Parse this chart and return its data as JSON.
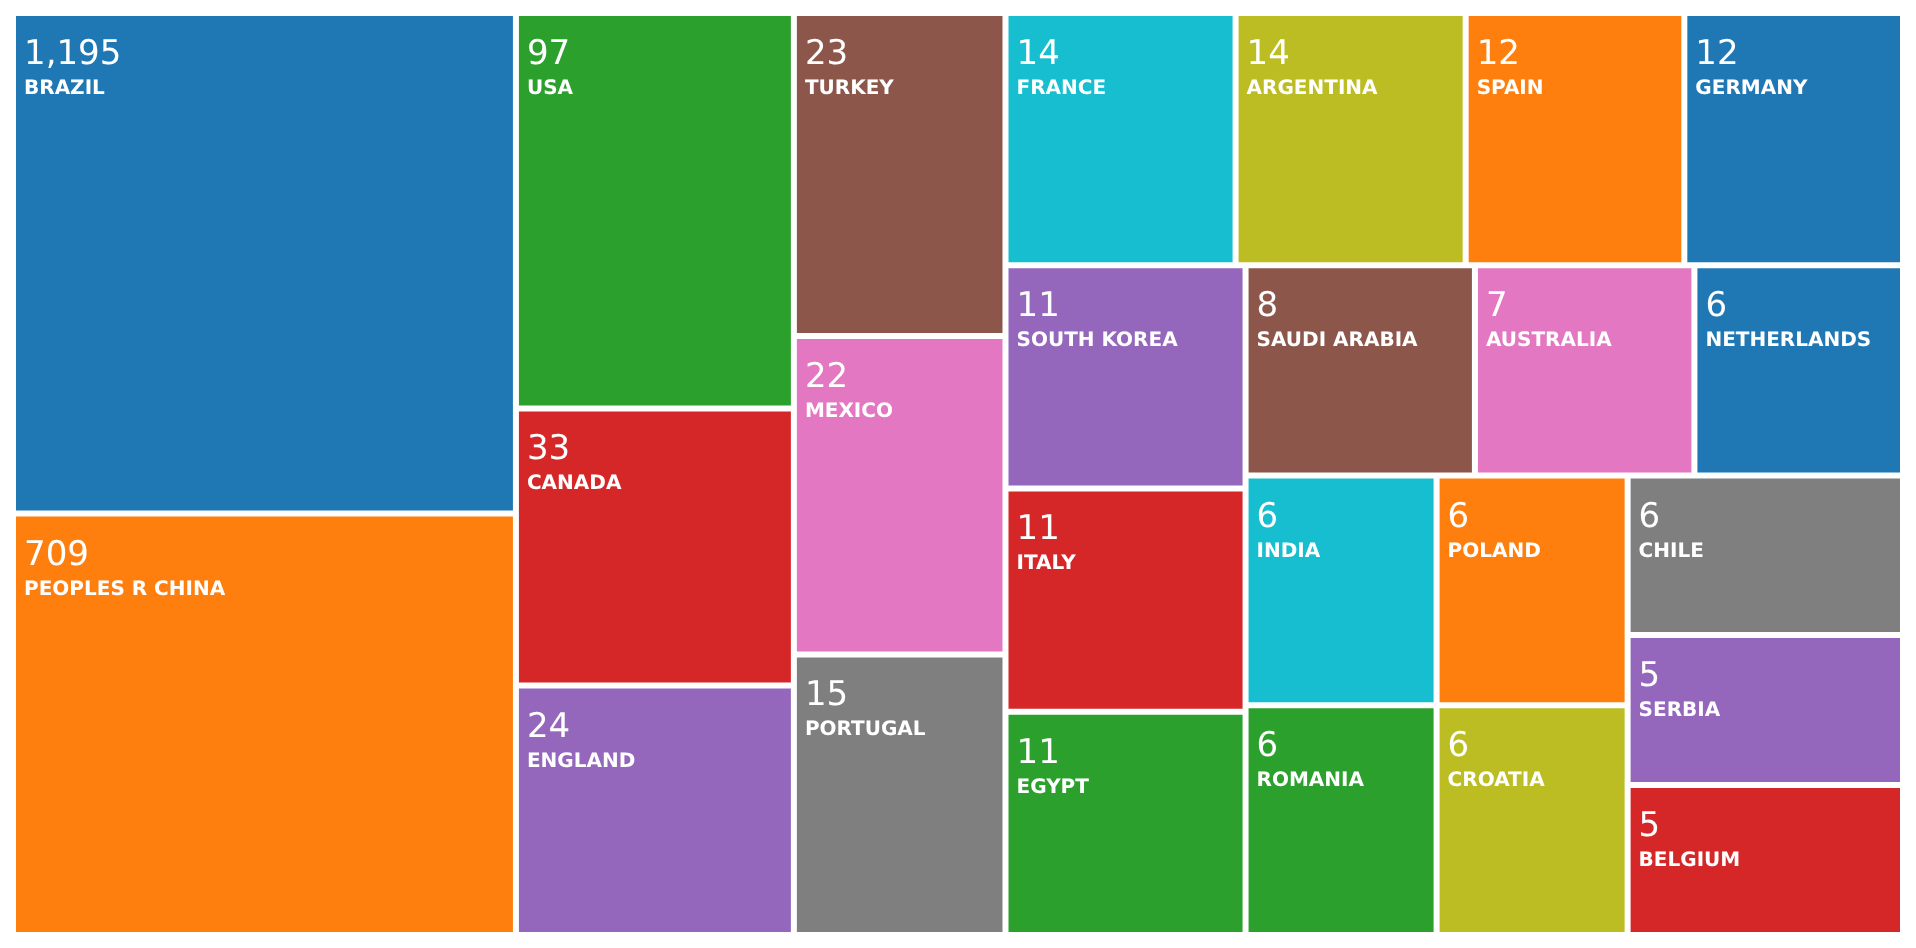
{
  "chart_data": {
    "type": "other",
    "categories": [
      "BRAZIL",
      "PEOPLES R CHINA",
      "USA",
      "CANADA",
      "ENGLAND",
      "TURKEY",
      "MEXICO",
      "PORTUGAL",
      "ARGENTINA",
      "FRANCE",
      "GERMANY",
      "SPAIN",
      "EGYPT",
      "ITALY",
      "SOUTH KOREA",
      "SAUDI ARABIA",
      "AUSTRALIA",
      "CHILE",
      "CROATIA",
      "POLAND",
      "ROMANIA",
      "INDIA",
      "NETHERLANDS",
      "BELGIUM",
      "SERBIA"
    ],
    "values": [
      1195,
      709,
      97,
      33,
      24,
      23,
      22,
      15,
      14,
      14,
      12,
      12,
      11,
      11,
      11,
      8,
      7,
      6,
      6,
      6,
      6,
      6,
      6,
      5,
      5
    ],
    "value_labels": [
      "1,195",
      "709",
      "97",
      "33",
      "24",
      "23",
      "22",
      "15",
      "14",
      "14",
      "12",
      "12",
      "11",
      "11",
      "11",
      "8",
      "7",
      "6",
      "6",
      "6",
      "6",
      "6",
      "6",
      "5",
      "5"
    ],
    "colors": [
      "#1f77b4",
      "#ff7f0e",
      "#2ca02c",
      "#d62728",
      "#9467bd",
      "#8c564b",
      "#e377c2",
      "#7f7f7f",
      "#bcbd22",
      "#17becf",
      "#1f77b4",
      "#ff7f0e",
      "#2ca02c",
      "#d62728",
      "#9467bd",
      "#8c564b",
      "#e377c2",
      "#7f7f7f",
      "#bcbd22",
      "#ff7f0e",
      "#2ca02c",
      "#17becf",
      "#1f77b4",
      "#d62728",
      "#9467bd"
    ],
    "data_labels": true
  }
}
